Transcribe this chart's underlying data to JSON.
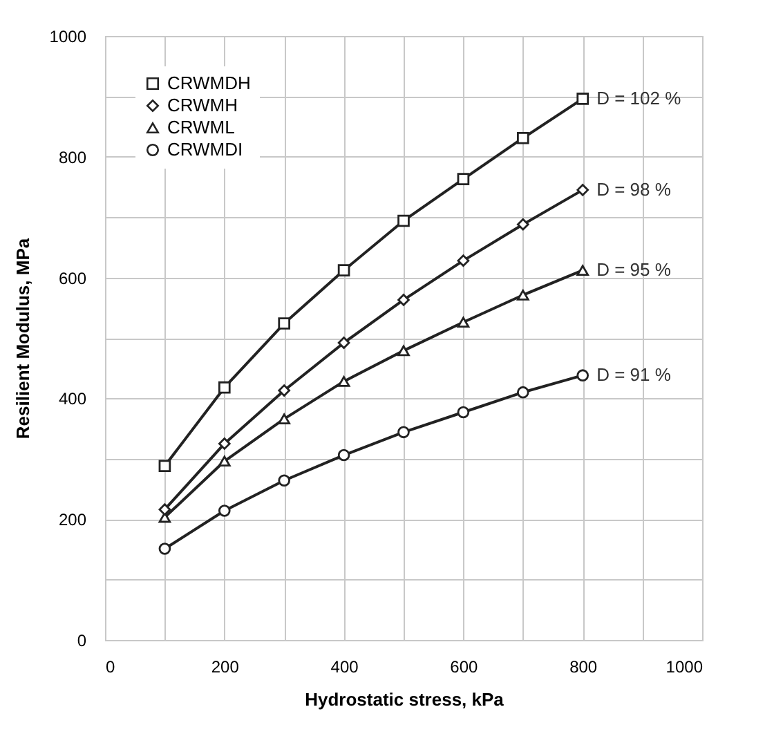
{
  "chart_data": {
    "type": "line",
    "xlabel": "Hydrostatic stress, kPa",
    "ylabel": "Resilient Modulus, MPa",
    "x": [
      100,
      200,
      300,
      400,
      500,
      600,
      700,
      800
    ],
    "series": [
      {
        "name": "CRWMDH",
        "color": "#222222",
        "marker": "square",
        "values": [
          288,
          418,
          524,
          612,
          694,
          763,
          831,
          896
        ]
      },
      {
        "name": "CRWMH",
        "color": "#222222",
        "marker": "diamond",
        "values": [
          216,
          325,
          413,
          492,
          563,
          628,
          688,
          745
        ]
      },
      {
        "name": "CRWML",
        "color": "#222222",
        "marker": "triangle",
        "values": [
          203,
          296,
          366,
          428,
          479,
          526,
          571,
          612
        ]
      },
      {
        "name": "CRWMDI",
        "color": "#222222",
        "marker": "circle",
        "values": [
          151,
          214,
          264,
          306,
          344,
          377,
          410,
          438
        ]
      }
    ],
    "xlim": [
      0,
      1000
    ],
    "ylim": [
      0,
      1000
    ],
    "xticks": [
      0,
      {
        "value": 100,
        "label": null
      },
      200,
      {
        "value": 300,
        "label": null
      },
      400,
      {
        "value": 500,
        "label": null
      },
      600,
      {
        "value": 700,
        "label": null
      },
      800,
      {
        "value": 900,
        "label": null
      },
      1000
    ],
    "yticks": [
      0,
      {
        "value": 100,
        "label": null
      },
      200,
      {
        "value": 300,
        "label": null
      },
      400,
      {
        "value": 500,
        "label": null
      },
      600,
      {
        "value": 700,
        "label": null
      },
      800,
      {
        "value": 900,
        "label": null
      },
      1000
    ],
    "annotations": [
      "D = 102 %",
      "D = 98 %",
      "D = 95  %",
      "D = 91  %"
    ],
    "grid": true,
    "legend": "top left",
    "line_style": "solid"
  }
}
